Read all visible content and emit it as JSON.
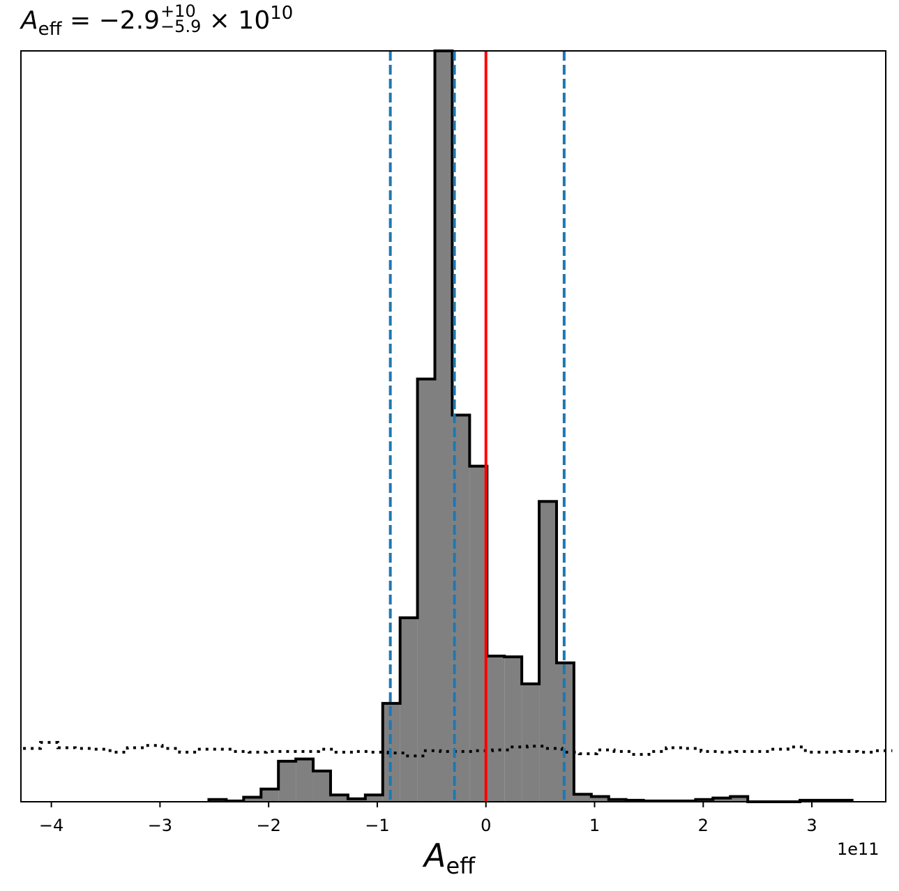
{
  "chart_data": {
    "type": "histogram",
    "title": {
      "lhs_symbol": "A",
      "lhs_subscript": "eff",
      "equals": "=",
      "value": "−2.9",
      "upper_err": "+10",
      "lower_err": "−5.9",
      "times": "×",
      "base": "10",
      "exponent": "10"
    },
    "xlabel": {
      "symbol": "A",
      "subscript": "eff"
    },
    "x_offset_text": "1e11",
    "x_unit_scale": 100000000000.0,
    "xlim": [
      -4.28,
      3.68
    ],
    "ylim": [
      0,
      1.0
    ],
    "xticks": [
      -4,
      -3,
      -2,
      -1,
      0,
      1,
      2,
      3
    ],
    "xtick_labels": [
      "−4",
      "−3",
      "−2",
      "−1",
      "0",
      "1",
      "2",
      "3"
    ],
    "yticks_visible": false,
    "histogram": {
      "bin_edges": [
        -2.55,
        -2.39,
        -2.23,
        -2.07,
        -1.91,
        -1.75,
        -1.59,
        -1.43,
        -1.27,
        -1.11,
        -0.95,
        -0.79,
        -0.63,
        -0.47,
        -0.31,
        -0.15,
        0.01,
        0.17,
        0.33,
        0.49,
        0.65,
        0.81,
        0.97,
        1.13,
        1.29,
        1.45,
        1.61,
        1.77,
        1.93,
        2.09,
        2.25,
        2.41,
        2.57,
        2.73,
        2.89,
        3.05,
        3.21,
        3.37
      ],
      "heights": [
        0.003,
        0.001,
        0.006,
        0.017,
        0.054,
        0.057,
        0.041,
        0.009,
        0.004,
        0.009,
        0.131,
        0.245,
        0.563,
        1.0,
        0.515,
        0.447,
        0.194,
        0.193,
        0.157,
        0.4,
        0.185,
        0.01,
        0.007,
        0.003,
        0.002,
        0.001,
        0.001,
        0.001,
        0.003,
        0.005,
        0.007,
        0.0,
        0.0,
        0.0,
        0.002,
        0.002,
        0.002
      ],
      "fill_color": "#808080",
      "edge_color": "#000000"
    },
    "prior_line": {
      "style": "dotted",
      "color": "#000000",
      "x": [
        -4.26,
        -4.1,
        -3.94,
        -3.78,
        -3.62,
        -3.46,
        -3.3,
        -3.14,
        -2.98,
        -2.82,
        -2.66,
        -2.5,
        -2.34,
        -2.18,
        -2.02,
        -1.86,
        -1.7,
        -1.54,
        -1.38,
        -1.22,
        -1.06,
        -0.9,
        -0.74,
        -0.58,
        -0.42,
        -0.26,
        -0.1,
        0.06,
        0.22,
        0.38,
        0.54,
        0.7,
        0.86,
        1.02,
        1.18,
        1.34,
        1.5,
        1.66,
        1.82,
        1.98,
        2.14,
        2.3,
        2.46,
        2.62,
        2.78,
        2.94,
        3.1,
        3.26,
        3.42,
        3.58
      ],
      "y": [
        0.071,
        0.079,
        0.072,
        0.071,
        0.07,
        0.066,
        0.072,
        0.075,
        0.071,
        0.066,
        0.07,
        0.07,
        0.067,
        0.066,
        0.067,
        0.067,
        0.067,
        0.07,
        0.066,
        0.067,
        0.066,
        0.065,
        0.061,
        0.068,
        0.067,
        0.067,
        0.068,
        0.069,
        0.073,
        0.074,
        0.071,
        0.066,
        0.064,
        0.069,
        0.067,
        0.063,
        0.067,
        0.072,
        0.071,
        0.067,
        0.066,
        0.067,
        0.067,
        0.07,
        0.073,
        0.066,
        0.066,
        0.067,
        0.066,
        0.068
      ]
    },
    "vlines": [
      {
        "x": -0.88,
        "style": "dashed",
        "color": "#1f77b4"
      },
      {
        "x": -0.29,
        "style": "dashed",
        "color": "#1f77b4"
      },
      {
        "x": 0.0,
        "style": "solid",
        "color": "#ff0000"
      },
      {
        "x": 0.72,
        "style": "dashed",
        "color": "#1f77b4"
      }
    ],
    "grid": false,
    "legend": "none"
  }
}
